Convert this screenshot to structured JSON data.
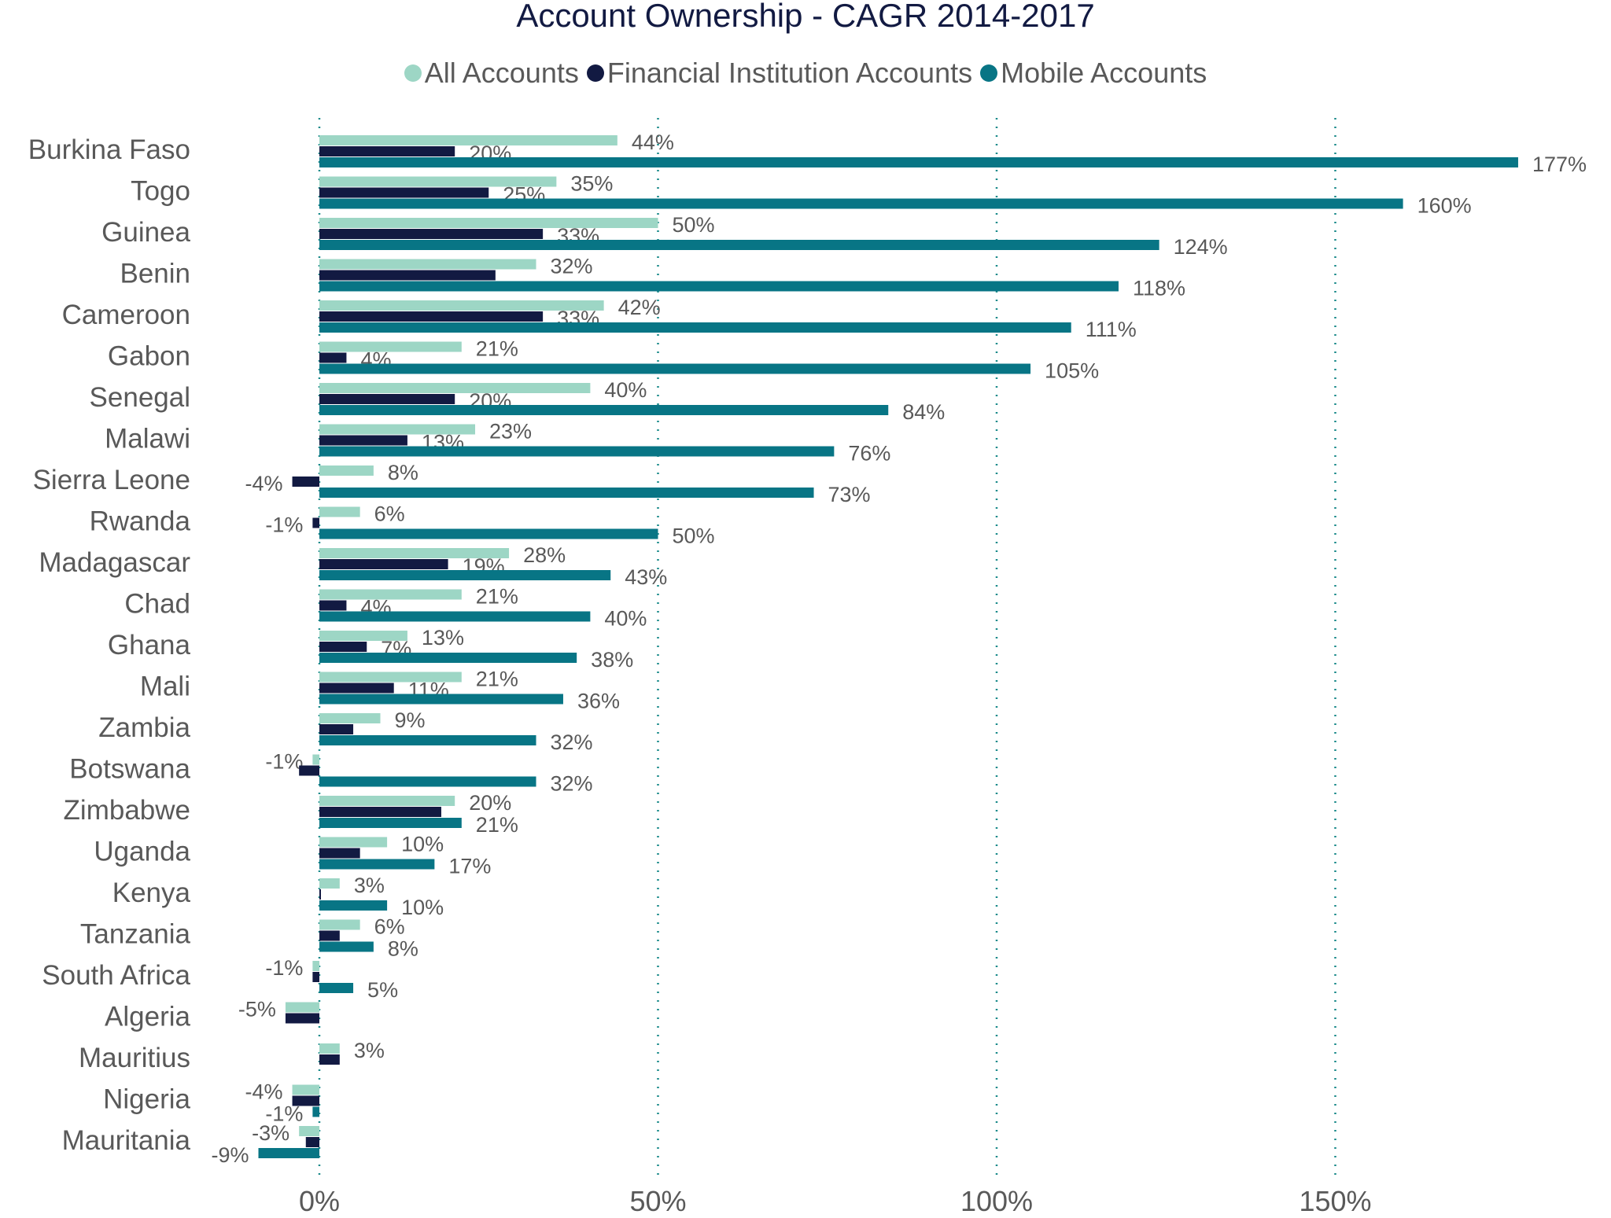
{
  "chart_data": {
    "type": "bar",
    "orientation": "horizontal",
    "title": "Account Ownership - CAGR 2014-2017",
    "xlabel": "",
    "ylabel": "",
    "xlim": [
      -15,
      185
    ],
    "x_ticks": [
      "0%",
      "50%",
      "100%",
      "150%"
    ],
    "x_tick_values": [
      0,
      50,
      100,
      150
    ],
    "grid": "vertical dotted",
    "legend_position": "top",
    "categories": [
      "Burkina Faso",
      "Togo",
      "Guinea",
      "Benin",
      "Cameroon",
      "Gabon",
      "Senegal",
      "Malawi",
      "Sierra Leone",
      "Rwanda",
      "Madagascar",
      "Chad",
      "Ghana",
      "Mali",
      "Zambia",
      "Botswana",
      "Zimbabwe",
      "Uganda",
      "Kenya",
      "Tanzania",
      "South Africa",
      "Algeria",
      "Mauritius",
      "Nigeria",
      "Mauritania"
    ],
    "series": [
      {
        "name": "All Accounts",
        "color": "#9dd6c5",
        "values": [
          44,
          35,
          50,
          32,
          42,
          21,
          40,
          23,
          8,
          6,
          28,
          21,
          13,
          21,
          9,
          -1,
          20,
          10,
          3,
          6,
          -1,
          -5,
          3,
          -4,
          -3
        ],
        "labels": [
          "44%",
          "35%",
          "50%",
          "32%",
          "42%",
          "21%",
          "40%",
          "23%",
          "8%",
          "6%",
          "28%",
          "21%",
          "13%",
          "21%",
          "9%",
          "-1%",
          "20%",
          "10%",
          "3%",
          "6%",
          "-1%",
          "-5%",
          "3%",
          "-4%",
          "-3%"
        ]
      },
      {
        "name": "Financial Institution Accounts",
        "color": "#121a42",
        "values": [
          20,
          25,
          33,
          26,
          33,
          4,
          20,
          13,
          -4,
          -1,
          19,
          4,
          7,
          11,
          5,
          -3,
          18,
          6,
          0,
          3,
          -1,
          -5,
          3,
          -4,
          -2
        ],
        "labels": [
          "20%",
          "25%",
          "33%",
          null,
          "33%",
          "4%",
          "20%",
          "13%",
          "-4%",
          "-1%",
          "19%",
          "4%",
          "7%",
          "11%",
          null,
          null,
          null,
          null,
          null,
          null,
          null,
          null,
          null,
          null,
          null
        ]
      },
      {
        "name": "Mobile Accounts",
        "color": "#087585",
        "values": [
          177,
          160,
          124,
          118,
          111,
          105,
          84,
          76,
          73,
          50,
          43,
          40,
          38,
          36,
          32,
          32,
          21,
          17,
          10,
          8,
          5,
          null,
          null,
          -1,
          -9
        ],
        "labels": [
          "177%",
          "160%",
          "124%",
          "118%",
          "111%",
          "105%",
          "84%",
          "76%",
          "73%",
          "50%",
          "43%",
          "40%",
          "38%",
          "36%",
          "32%",
          "32%",
          "21%",
          "17%",
          "10%",
          "8%",
          "5%",
          null,
          null,
          "-1%",
          "-9%"
        ]
      }
    ]
  }
}
